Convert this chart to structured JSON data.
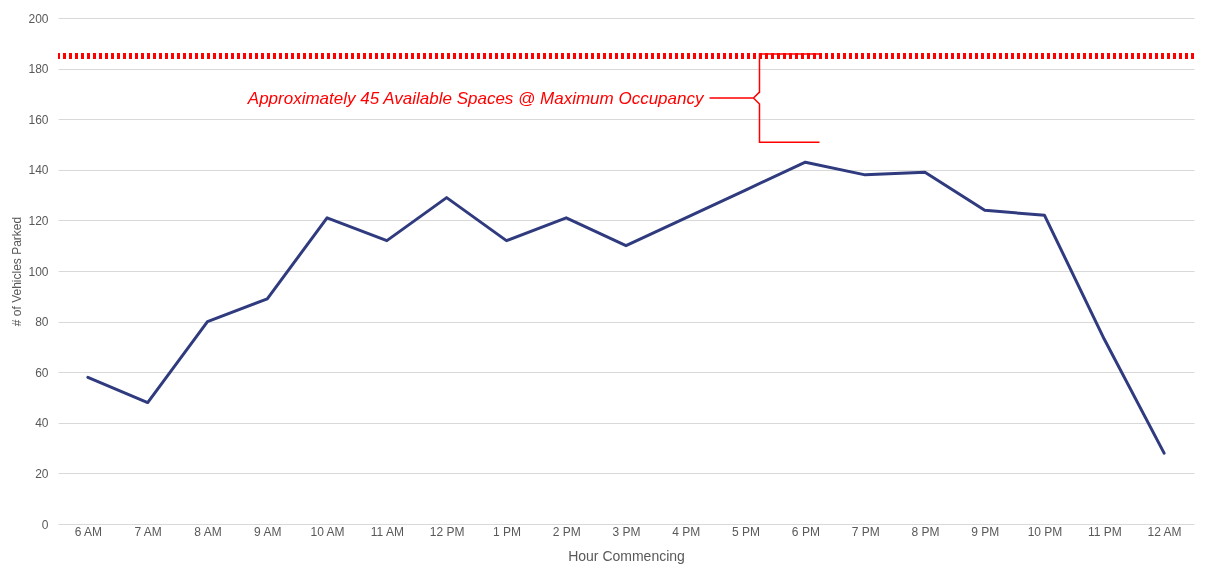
{
  "chart_data": {
    "type": "line",
    "xlabel": "Hour Commencing",
    "ylabel": "# of Vehicles Parked",
    "categories": [
      "6 AM",
      "7 AM",
      "8 AM",
      "9 AM",
      "10 AM",
      "11 AM",
      "12 PM",
      "1 PM",
      "2 PM",
      "3 PM",
      "4 PM",
      "5 PM",
      "6 PM",
      "7 PM",
      "8 PM",
      "9 PM",
      "10 PM",
      "11 PM",
      "12 AM"
    ],
    "series": [
      {
        "color": "#2f3b7e",
        "values": [
          58,
          48,
          80,
          89,
          121,
          112,
          129,
          112,
          121,
          110,
          121,
          132,
          143,
          138,
          139,
          124,
          122,
          73,
          28
        ]
      }
    ],
    "ylim": [
      0,
      200
    ],
    "yticks": [
      0,
      20,
      40,
      60,
      80,
      100,
      120,
      140,
      160,
      180,
      200
    ],
    "grid": "y",
    "ref_lines": [
      {
        "axis": "y",
        "value": 185,
        "color": "#ff0000",
        "line_style": "dotted"
      }
    ],
    "annotations": [
      "Approximately 45 Available Spaces @ Maximum Occupancy"
    ]
  }
}
